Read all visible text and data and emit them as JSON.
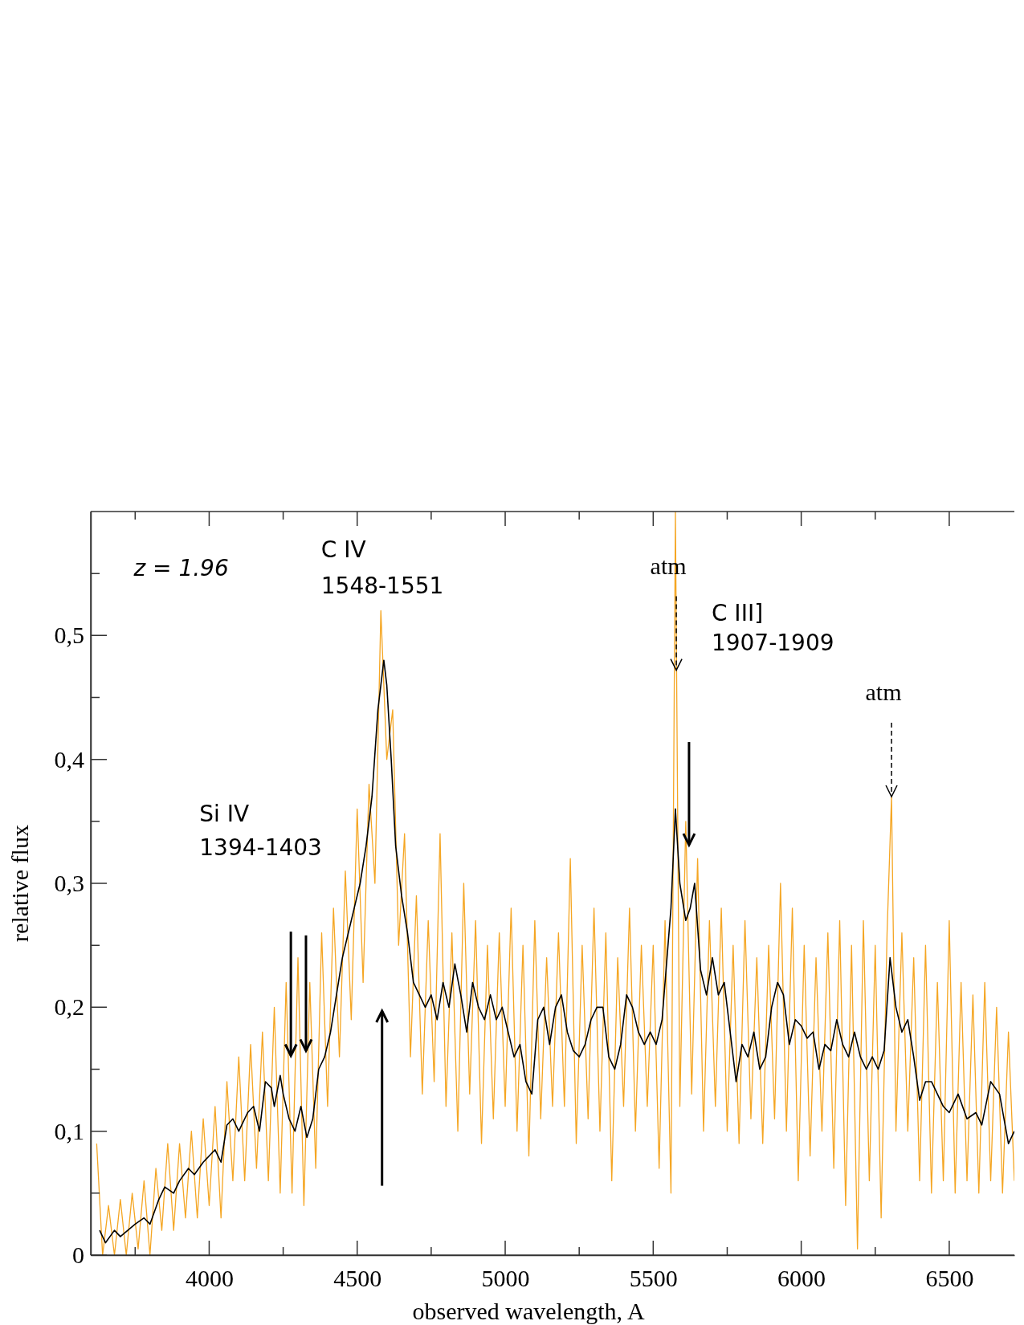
{
  "chart_data": {
    "type": "line",
    "xlabel": "observed wavelength, A",
    "ylabel": "relative flux",
    "xlim": [
      3600,
      6720
    ],
    "ylim": [
      0,
      0.6
    ],
    "xticks": [
      {
        "value": 3750,
        "label": null
      },
      4000,
      {
        "value": 4250,
        "label": null
      },
      4500,
      {
        "value": 4750,
        "label": null
      },
      5000,
      {
        "value": 5250,
        "label": null
      },
      5500,
      {
        "value": 5750,
        "label": null
      },
      6000,
      {
        "value": 6250,
        "label": null
      },
      6500
    ],
    "yticks": [
      0,
      {
        "value": 0.05,
        "label": null
      },
      {
        "value": 0.1,
        "label": "0,1"
      },
      {
        "value": 0.15,
        "label": null
      },
      {
        "value": 0.2,
        "label": "0,2"
      },
      {
        "value": 0.25,
        "label": null
      },
      {
        "value": 0.3,
        "label": "0,3"
      },
      {
        "value": 0.35,
        "label": null
      },
      {
        "value": 0.4,
        "label": "0,4"
      },
      {
        "value": 0.45,
        "label": null
      },
      {
        "value": 0.5,
        "label": "0,5"
      },
      {
        "value": 0.55,
        "label": null
      }
    ],
    "marker": "none",
    "line_style": "solid",
    "series": [
      {
        "color": "#f5a623",
        "x": [
          3620,
          3640,
          3660,
          3680,
          3700,
          3720,
          3740,
          3760,
          3780,
          3800,
          3820,
          3840,
          3860,
          3880,
          3900,
          3920,
          3940,
          3960,
          3980,
          4000,
          4020,
          4040,
          4060,
          4080,
          4100,
          4120,
          4140,
          4160,
          4180,
          4200,
          4220,
          4240,
          4260,
          4280,
          4300,
          4320,
          4340,
          4360,
          4380,
          4400,
          4420,
          4440,
          4460,
          4480,
          4500,
          4520,
          4540,
          4560,
          4580,
          4600,
          4620,
          4640,
          4660,
          4680,
          4700,
          4720,
          4740,
          4760,
          4780,
          4800,
          4820,
          4840,
          4860,
          4880,
          4900,
          4920,
          4940,
          4960,
          4980,
          5000,
          5020,
          5040,
          5060,
          5080,
          5100,
          5120,
          5140,
          5160,
          5180,
          5200,
          5220,
          5240,
          5260,
          5280,
          5300,
          5320,
          5340,
          5360,
          5380,
          5400,
          5420,
          5440,
          5460,
          5480,
          5500,
          5520,
          5540,
          5560,
          5575,
          5590,
          5610,
          5630,
          5650,
          5670,
          5690,
          5710,
          5730,
          5750,
          5770,
          5790,
          5810,
          5830,
          5850,
          5870,
          5890,
          5910,
          5930,
          5950,
          5970,
          5990,
          6010,
          6030,
          6050,
          6070,
          6090,
          6110,
          6130,
          6150,
          6170,
          6190,
          6210,
          6230,
          6250,
          6270,
          6290,
          6305,
          6320,
          6340,
          6360,
          6380,
          6400,
          6420,
          6440,
          6460,
          6480,
          6500,
          6520,
          6540,
          6560,
          6580,
          6600,
          6620,
          6640,
          6660,
          6680,
          6700,
          6720
        ],
        "values": [
          0.09,
          0.0,
          0.04,
          0.0,
          0.045,
          0.0,
          0.05,
          0.005,
          0.06,
          0.0,
          0.07,
          0.02,
          0.09,
          0.02,
          0.09,
          0.03,
          0.1,
          0.03,
          0.11,
          0.04,
          0.12,
          0.03,
          0.14,
          0.06,
          0.16,
          0.06,
          0.17,
          0.07,
          0.18,
          0.06,
          0.2,
          0.05,
          0.22,
          0.05,
          0.24,
          0.04,
          0.22,
          0.07,
          0.26,
          0.12,
          0.28,
          0.16,
          0.31,
          0.19,
          0.36,
          0.22,
          0.38,
          0.3,
          0.52,
          0.4,
          0.44,
          0.25,
          0.34,
          0.16,
          0.29,
          0.13,
          0.27,
          0.14,
          0.34,
          0.12,
          0.26,
          0.1,
          0.3,
          0.13,
          0.27,
          0.09,
          0.25,
          0.11,
          0.26,
          0.12,
          0.28,
          0.1,
          0.25,
          0.08,
          0.27,
          0.11,
          0.24,
          0.12,
          0.26,
          0.12,
          0.32,
          0.09,
          0.25,
          0.11,
          0.28,
          0.1,
          0.26,
          0.06,
          0.24,
          0.12,
          0.28,
          0.1,
          0.25,
          0.12,
          0.25,
          0.07,
          0.27,
          0.05,
          0.6,
          0.12,
          0.35,
          0.13,
          0.32,
          0.1,
          0.27,
          0.12,
          0.28,
          0.1,
          0.25,
          0.09,
          0.27,
          0.11,
          0.24,
          0.09,
          0.25,
          0.11,
          0.3,
          0.1,
          0.28,
          0.06,
          0.25,
          0.08,
          0.24,
          0.1,
          0.26,
          0.07,
          0.27,
          0.04,
          0.25,
          0.005,
          0.27,
          0.06,
          0.25,
          0.03,
          0.26,
          0.37,
          0.1,
          0.26,
          0.1,
          0.24,
          0.06,
          0.25,
          0.05,
          0.22,
          0.06,
          0.27,
          0.05,
          0.22,
          0.06,
          0.21,
          0.05,
          0.22,
          0.06,
          0.2,
          0.05,
          0.18,
          0.06
        ]
      },
      {
        "color": "#000000",
        "x": [
          3630,
          3650,
          3680,
          3700,
          3750,
          3780,
          3800,
          3830,
          3850,
          3880,
          3900,
          3930,
          3950,
          3980,
          4000,
          4020,
          4040,
          4060,
          4080,
          4100,
          4130,
          4150,
          4170,
          4190,
          4210,
          4220,
          4240,
          4250,
          4270,
          4290,
          4310,
          4330,
          4350,
          4370,
          4390,
          4410,
          4430,
          4450,
          4470,
          4490,
          4510,
          4530,
          4550,
          4570,
          4590,
          4600,
          4615,
          4630,
          4650,
          4670,
          4690,
          4710,
          4730,
          4750,
          4770,
          4790,
          4810,
          4830,
          4850,
          4870,
          4890,
          4910,
          4930,
          4950,
          4970,
          4990,
          5010,
          5030,
          5050,
          5070,
          5090,
          5110,
          5130,
          5150,
          5170,
          5190,
          5210,
          5230,
          5250,
          5270,
          5290,
          5310,
          5330,
          5350,
          5370,
          5390,
          5410,
          5430,
          5450,
          5470,
          5490,
          5510,
          5530,
          5560,
          5575,
          5590,
          5610,
          5625,
          5640,
          5660,
          5680,
          5700,
          5720,
          5740,
          5760,
          5780,
          5800,
          5820,
          5840,
          5860,
          5880,
          5900,
          5920,
          5940,
          5960,
          5980,
          6000,
          6020,
          6040,
          6060,
          6080,
          6100,
          6120,
          6140,
          6160,
          6180,
          6200,
          6220,
          6240,
          6260,
          6280,
          6300,
          6320,
          6340,
          6360,
          6380,
          6400,
          6420,
          6440,
          6460,
          6480,
          6500,
          6530,
          6560,
          6590,
          6610,
          6640,
          6670,
          6700,
          6720
        ],
        "values": [
          0.02,
          0.01,
          0.02,
          0.015,
          0.025,
          0.03,
          0.025,
          0.045,
          0.055,
          0.05,
          0.06,
          0.07,
          0.065,
          0.075,
          0.08,
          0.085,
          0.075,
          0.105,
          0.11,
          0.1,
          0.115,
          0.12,
          0.1,
          0.14,
          0.135,
          0.12,
          0.145,
          0.13,
          0.11,
          0.1,
          0.12,
          0.095,
          0.11,
          0.15,
          0.16,
          0.18,
          0.21,
          0.24,
          0.26,
          0.28,
          0.3,
          0.33,
          0.37,
          0.44,
          0.48,
          0.46,
          0.4,
          0.33,
          0.29,
          0.26,
          0.22,
          0.21,
          0.2,
          0.21,
          0.19,
          0.22,
          0.2,
          0.235,
          0.21,
          0.18,
          0.22,
          0.2,
          0.19,
          0.21,
          0.19,
          0.2,
          0.18,
          0.16,
          0.17,
          0.14,
          0.13,
          0.19,
          0.2,
          0.17,
          0.2,
          0.21,
          0.18,
          0.165,
          0.16,
          0.17,
          0.19,
          0.2,
          0.2,
          0.16,
          0.15,
          0.17,
          0.21,
          0.2,
          0.18,
          0.17,
          0.18,
          0.17,
          0.19,
          0.28,
          0.36,
          0.3,
          0.27,
          0.28,
          0.3,
          0.23,
          0.21,
          0.24,
          0.21,
          0.22,
          0.18,
          0.14,
          0.17,
          0.16,
          0.18,
          0.15,
          0.16,
          0.2,
          0.22,
          0.21,
          0.17,
          0.19,
          0.185,
          0.175,
          0.18,
          0.15,
          0.17,
          0.165,
          0.19,
          0.17,
          0.16,
          0.18,
          0.16,
          0.15,
          0.16,
          0.15,
          0.165,
          0.24,
          0.2,
          0.18,
          0.19,
          0.16,
          0.125,
          0.14,
          0.14,
          0.13,
          0.12,
          0.115,
          0.13,
          0.11,
          0.115,
          0.105,
          0.14,
          0.13,
          0.09,
          0.1
        ]
      }
    ],
    "annotations": [
      "z = 1.96",
      "C IV",
      "1548-1551",
      "Si IV",
      "1394-1403",
      {
        "text": "atm",
        "x": 5578,
        "y": 0.472
      },
      "C III]",
      "1907-1909",
      {
        "text": "atm",
        "x": 6305,
        "y": 0.37
      }
    ]
  }
}
